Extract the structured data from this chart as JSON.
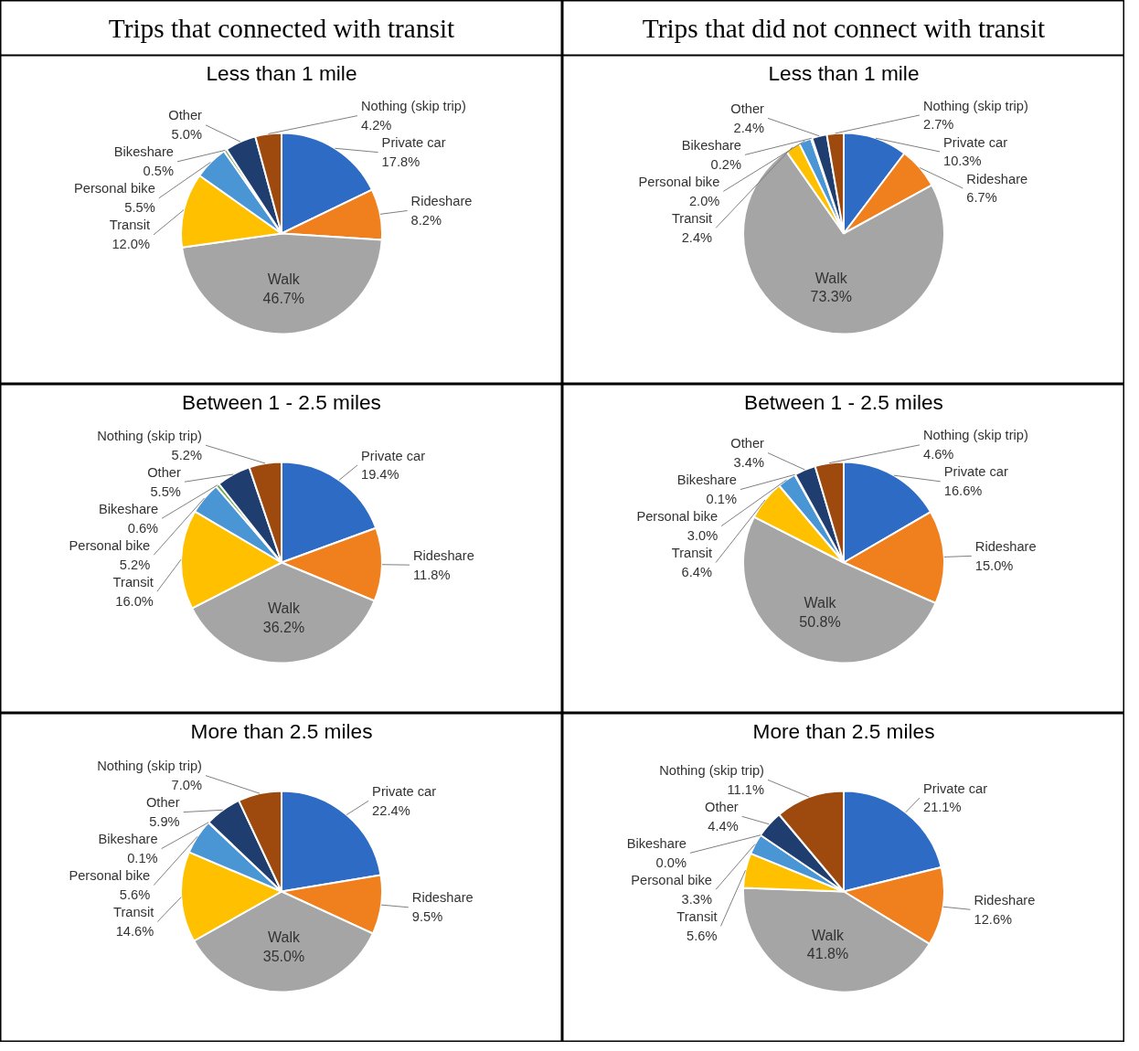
{
  "chart_data": [
    {
      "type": "pie",
      "subtitle": "Trips that connected with transit",
      "title": "Less than 1 mile",
      "categories": [
        "Private car",
        "Rideshare",
        "Walk",
        "Transit",
        "Personal bike",
        "Bikeshare",
        "Other",
        "Nothing (skip trip)"
      ],
      "values": [
        17.8,
        8.2,
        46.7,
        12.0,
        5.5,
        0.5,
        5.0,
        4.2
      ],
      "value_labels": [
        "17.8%",
        "8.2%",
        "46.7%",
        "12.0%",
        "5.5%",
        "0.5%",
        "5.0%",
        "4.2%"
      ],
      "colors": [
        "#2e6bc4",
        "#f07f1e",
        "#a5a5a5",
        "#ffc000",
        "#4a95d3",
        "#6aa84f",
        "#1f3d6e",
        "#9e4a0f"
      ],
      "legend": false
    },
    {
      "type": "pie",
      "subtitle": "Trips that did not connect with transit",
      "title": "Less than 1 mile",
      "categories": [
        "Private car",
        "Rideshare",
        "Walk",
        "Transit",
        "Personal bike",
        "Bikeshare",
        "Other",
        "Nothing (skip trip)"
      ],
      "values": [
        10.3,
        6.7,
        73.3,
        2.4,
        2.0,
        0.2,
        2.4,
        2.7
      ],
      "value_labels": [
        "10.3%",
        "6.7%",
        "73.3%",
        "2.4%",
        "2.0%",
        "0.2%",
        "2.4%",
        "2.7%"
      ],
      "colors": [
        "#2e6bc4",
        "#f07f1e",
        "#a5a5a5",
        "#ffc000",
        "#4a95d3",
        "#6aa84f",
        "#1f3d6e",
        "#9e4a0f"
      ],
      "legend": false
    },
    {
      "type": "pie",
      "title": "Between 1 - 2.5 miles",
      "categories": [
        "Private car",
        "Rideshare",
        "Walk",
        "Transit",
        "Personal bike",
        "Bikeshare",
        "Other",
        "Nothing (skip trip)"
      ],
      "values": [
        19.4,
        11.8,
        36.2,
        16.0,
        5.2,
        0.6,
        5.5,
        5.2
      ],
      "value_labels": [
        "19.4%",
        "11.8%",
        "36.2%",
        "16.0%",
        "5.2%",
        "0.6%",
        "5.5%",
        "5.2%"
      ],
      "colors": [
        "#2e6bc4",
        "#f07f1e",
        "#a5a5a5",
        "#ffc000",
        "#4a95d3",
        "#6aa84f",
        "#1f3d6e",
        "#9e4a0f"
      ],
      "legend": false
    },
    {
      "type": "pie",
      "title": "Between 1 - 2.5 miles",
      "categories": [
        "Private car",
        "Rideshare",
        "Walk",
        "Transit",
        "Personal bike",
        "Bikeshare",
        "Other",
        "Nothing (skip trip)"
      ],
      "values": [
        16.6,
        15.0,
        50.8,
        6.4,
        3.0,
        0.1,
        3.4,
        4.6
      ],
      "value_labels": [
        "16.6%",
        "15.0%",
        "50.8%",
        "6.4%",
        "3.0%",
        "0.1%",
        "3.4%",
        "4.6%"
      ],
      "colors": [
        "#2e6bc4",
        "#f07f1e",
        "#a5a5a5",
        "#ffc000",
        "#4a95d3",
        "#6aa84f",
        "#1f3d6e",
        "#9e4a0f"
      ],
      "legend": false
    },
    {
      "type": "pie",
      "title": "More than 2.5 miles",
      "categories": [
        "Private car",
        "Rideshare",
        "Walk",
        "Transit",
        "Personal bike",
        "Bikeshare",
        "Other",
        "Nothing (skip trip)"
      ],
      "values": [
        22.4,
        9.5,
        35.0,
        14.6,
        5.6,
        0.1,
        5.9,
        7.0
      ],
      "value_labels": [
        "22.4%",
        "9.5%",
        "35.0%",
        "14.6%",
        "5.6%",
        "0.1%",
        "5.9%",
        "7.0%"
      ],
      "colors": [
        "#2e6bc4",
        "#f07f1e",
        "#a5a5a5",
        "#ffc000",
        "#4a95d3",
        "#6aa84f",
        "#1f3d6e",
        "#9e4a0f"
      ],
      "legend": false
    },
    {
      "type": "pie",
      "title": "More than 2.5 miles",
      "categories": [
        "Private car",
        "Rideshare",
        "Walk",
        "Transit",
        "Personal bike",
        "Bikeshare",
        "Other",
        "Nothing (skip trip)"
      ],
      "values": [
        21.1,
        12.6,
        41.8,
        5.6,
        3.3,
        0.0,
        4.4,
        11.1
      ],
      "value_labels": [
        "21.1%",
        "12.6%",
        "41.8%",
        "5.6%",
        "3.3%",
        "0.0%",
        "4.4%",
        "11.1%"
      ],
      "colors": [
        "#2e6bc4",
        "#f07f1e",
        "#a5a5a5",
        "#ffc000",
        "#4a95d3",
        "#6aa84f",
        "#1f3d6e",
        "#9e4a0f"
      ],
      "legend": false
    }
  ]
}
